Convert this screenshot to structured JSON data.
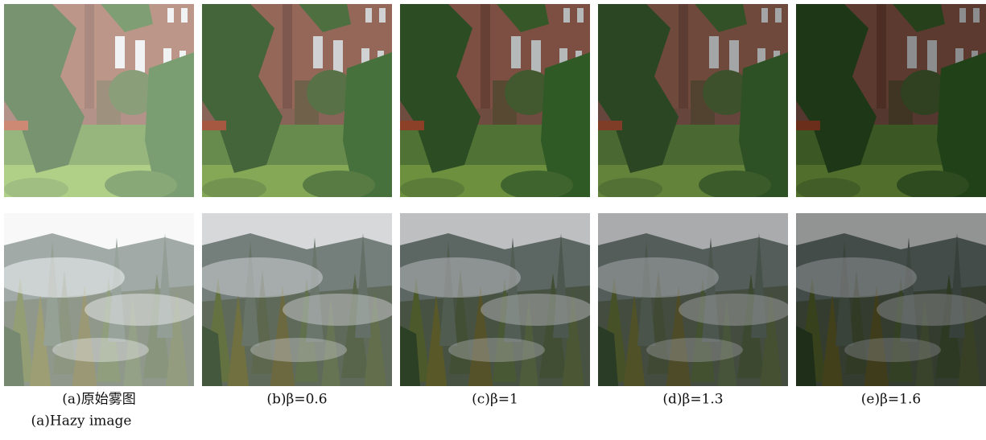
{
  "figure": {
    "panels": [
      {
        "caption": "(a)原始雾图",
        "caption_en": "(a)Hazy image"
      },
      {
        "caption": "(b)β=0.6"
      },
      {
        "caption": "(c)β=1"
      },
      {
        "caption": "(d)β=1.3"
      },
      {
        "caption": "(e)β=1.6"
      }
    ]
  }
}
